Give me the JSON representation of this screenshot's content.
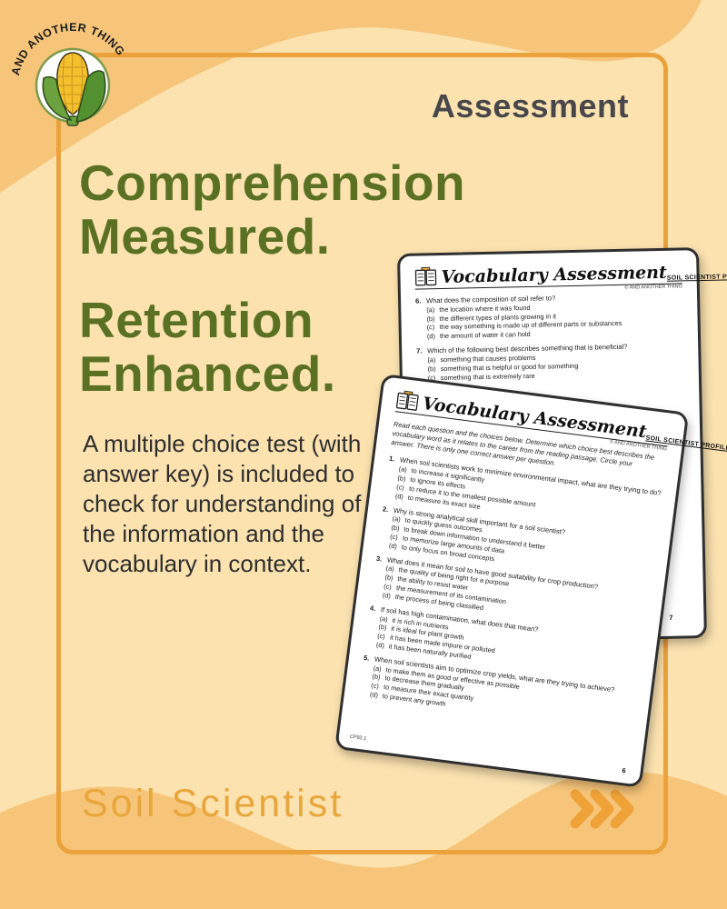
{
  "colors": {
    "background_light": "#FBE2AF",
    "background_medium": "#F7C57A",
    "frame_gold": "#ECA23A",
    "headline_green": "#5A7123",
    "heading_gray": "#47474B",
    "body_text": "#2E2E2E",
    "accent_gold": "#E8A63D",
    "page_border": "#2F2F2F"
  },
  "badge": {
    "arc_text": "AND ANOTHER THING",
    "icon": "corn-icon"
  },
  "header": {
    "label": "Assessment"
  },
  "headline": {
    "line1": "Comprehension",
    "line2": "Measured.",
    "line3": "Retention",
    "line4": "Enhanced."
  },
  "body_text": "A multiple choice test (with answer key) is included to check for understanding of the information and the vocabulary in context.",
  "footer": {
    "product_label": "Soil Scientist",
    "arrows_icon": "triple-chevron-right-icon"
  },
  "pages": {
    "back": {
      "title": "Vocabulary Assessment",
      "subtitle": "SOIL SCIENTIST PROFILE",
      "copyright": "© AND ANOTHER THING",
      "page_number": "7",
      "questions": [
        {
          "number": "6.",
          "text": "What does the composition of soil refer to?",
          "options": [
            {
              "letter": "(a)",
              "text": "the location where it was found"
            },
            {
              "letter": "(b)",
              "text": "the different types of plants growing in it"
            },
            {
              "letter": "(c)",
              "text": "the way something is made up of different parts or substances"
            },
            {
              "letter": "(d)",
              "text": "the amount of water it can hold"
            }
          ]
        },
        {
          "number": "7.",
          "text": "Which of the following best describes something that is beneficial?",
          "options": [
            {
              "letter": "(a)",
              "text": "something that causes problems"
            },
            {
              "letter": "(b)",
              "text": "something that is helpful or good for something"
            },
            {
              "letter": "(c)",
              "text": "something that is extremely rare"
            }
          ]
        }
      ]
    },
    "front": {
      "title": "Vocabulary Assessment",
      "subtitle": "SOIL SCIENTIST PROFILE",
      "copyright": "© AND ANOTHER THING",
      "instructions": "Read each question and the choices below. Determine which choice best describes the vocabulary word as it relates to the career from the reading passage. Circle your answer. There is only one correct answer per question.",
      "footer_code": "CP92.1",
      "page_number": "6",
      "questions": [
        {
          "number": "1.",
          "text": "When soil scientists work to minimize environmental impact, what are they trying to do?",
          "options": [
            {
              "letter": "(a)",
              "text": "to increase it significantly"
            },
            {
              "letter": "(b)",
              "text": "to ignore its effects"
            },
            {
              "letter": "(c)",
              "text": "to reduce it to the smallest possible amount"
            },
            {
              "letter": "(d)",
              "text": "to measure its exact size"
            }
          ]
        },
        {
          "number": "2.",
          "text": "Why is strong analytical skill important for a soil scientist?",
          "options": [
            {
              "letter": "(a)",
              "text": "to quickly guess outcomes"
            },
            {
              "letter": "(b)",
              "text": "to break down information to understand it better"
            },
            {
              "letter": "(c)",
              "text": "to memorize large amounts of data"
            },
            {
              "letter": "(d)",
              "text": "to only focus on broad concepts"
            }
          ]
        },
        {
          "number": "3.",
          "text": "What does it mean for soil to have good suitability for crop production?",
          "options": [
            {
              "letter": "(a)",
              "text": "the quality of being right for a purpose"
            },
            {
              "letter": "(b)",
              "text": "the ability to resist water"
            },
            {
              "letter": "(c)",
              "text": "the measurement of its contamination"
            },
            {
              "letter": "(d)",
              "text": "the process of being classified"
            }
          ]
        },
        {
          "number": "4.",
          "text": "If soil has high contamination, what does that mean?",
          "options": [
            {
              "letter": "(a)",
              "text": "it is rich in nutrients"
            },
            {
              "letter": "(b)",
              "text": "it is ideal for plant growth"
            },
            {
              "letter": "(c)",
              "text": "it has been made impure or polluted"
            },
            {
              "letter": "(d)",
              "text": "it has been naturally purified"
            }
          ]
        },
        {
          "number": "5.",
          "text": "When soil scientists aim to optimize crop yields, what are they trying to achieve?",
          "options": [
            {
              "letter": "(a)",
              "text": "to make them as good or effective as possible"
            },
            {
              "letter": "(b)",
              "text": "to decrease them gradually"
            },
            {
              "letter": "(c)",
              "text": "to measure their exact quantity"
            },
            {
              "letter": "(d)",
              "text": "to prevent any growth"
            }
          ]
        }
      ]
    }
  }
}
